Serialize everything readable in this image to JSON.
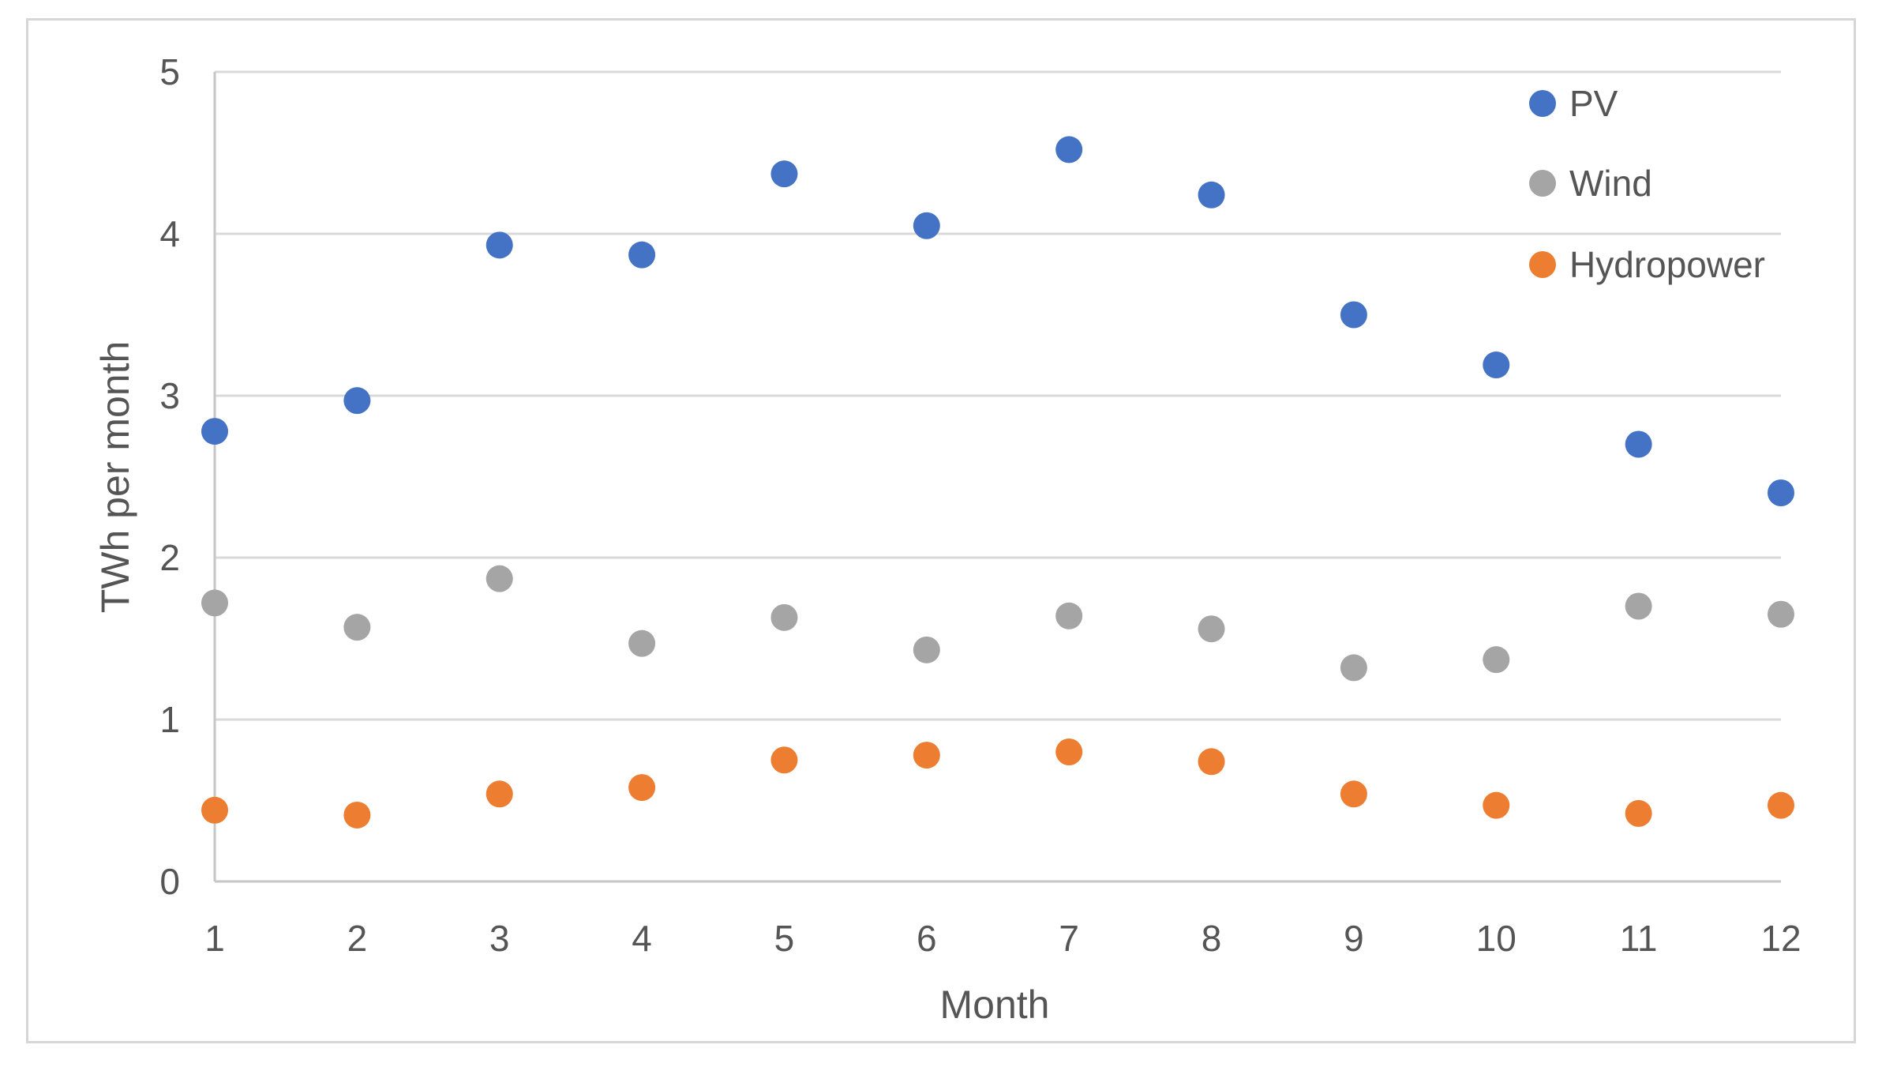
{
  "chart_data": {
    "type": "scatter",
    "title": "",
    "xlabel": "Month",
    "ylabel": "TWh per month",
    "x": [
      1,
      2,
      3,
      4,
      5,
      6,
      7,
      8,
      9,
      10,
      11,
      12
    ],
    "xlim": [
      1,
      12
    ],
    "ylim": [
      0,
      5
    ],
    "xticks": [
      1,
      2,
      3,
      4,
      5,
      6,
      7,
      8,
      9,
      10,
      11,
      12
    ],
    "yticks": [
      0,
      1,
      2,
      3,
      4,
      5
    ],
    "grid": "horizontal",
    "legend_position": "inside-top-right",
    "series": [
      {
        "name": "PV",
        "color": "#4472c4",
        "values": [
          2.78,
          2.97,
          3.93,
          3.87,
          4.37,
          4.05,
          4.52,
          4.24,
          3.5,
          3.19,
          2.7,
          2.4
        ]
      },
      {
        "name": "Wind",
        "color": "#a5a5a5",
        "values": [
          1.72,
          1.57,
          1.87,
          1.47,
          1.63,
          1.43,
          1.64,
          1.56,
          1.32,
          1.37,
          1.7,
          1.65
        ]
      },
      {
        "name": "Hydropower",
        "color": "#ed7d31",
        "values": [
          0.44,
          0.41,
          0.54,
          0.58,
          0.75,
          0.78,
          0.8,
          0.74,
          0.54,
          0.47,
          0.42,
          0.47
        ]
      }
    ],
    "colors": {
      "gridline": "#d9d9d9",
      "axis_line": "#c6c6c6",
      "text": "#555555",
      "border": "#d6d6d6",
      "background": "#ffffff"
    }
  }
}
